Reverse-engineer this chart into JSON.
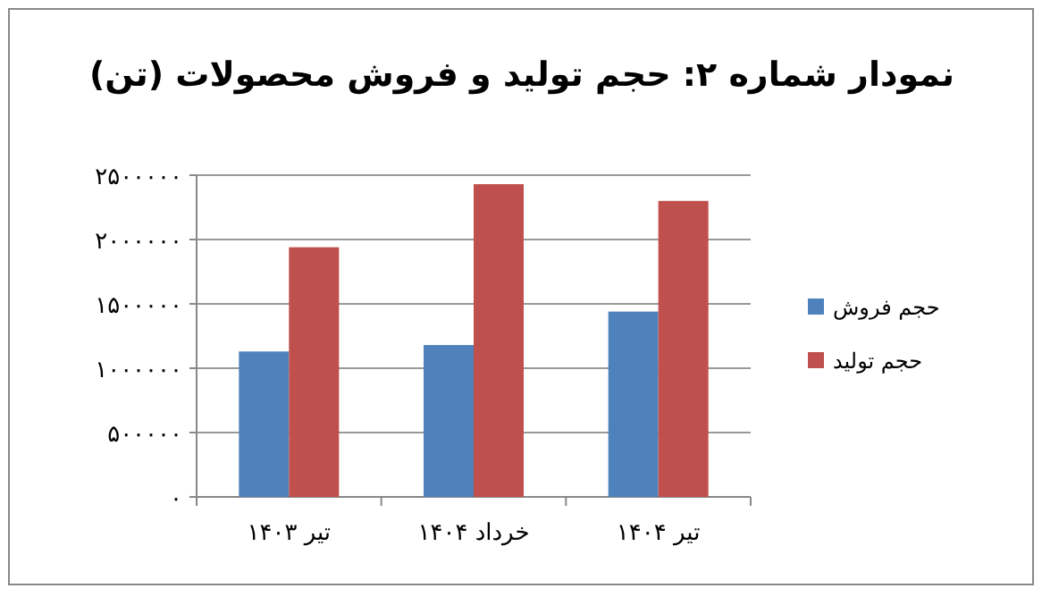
{
  "chart_data": {
    "type": "bar",
    "title": "نمودار شماره ۲: حجم تولید و فروش محصولات (تن)",
    "categories": [
      "تیر ۱۴۰۳",
      "خرداد ۱۴۰۴",
      "تیر ۱۴۰۴"
    ],
    "series": [
      {
        "name": "حجم فروش",
        "color": "#4f81bd",
        "values": [
          1130000,
          1180000,
          1440000
        ]
      },
      {
        "name": "حجم تولید",
        "color": "#c0504d",
        "values": [
          1940000,
          2430000,
          2300000
        ]
      }
    ],
    "ylim": [
      0,
      2500000
    ],
    "yticks": [
      {
        "value": 0,
        "label": "۰"
      },
      {
        "value": 500000,
        "label": "۵۰۰۰۰۰"
      },
      {
        "value": 1000000,
        "label": "۱۰۰۰۰۰۰"
      },
      {
        "value": 1500000,
        "label": "۱۵۰۰۰۰۰"
      },
      {
        "value": 2000000,
        "label": "۲۰۰۰۰۰۰"
      },
      {
        "value": 2500000,
        "label": "۲۵۰۰۰۰۰"
      }
    ],
    "grid": "y",
    "legend": "right"
  }
}
